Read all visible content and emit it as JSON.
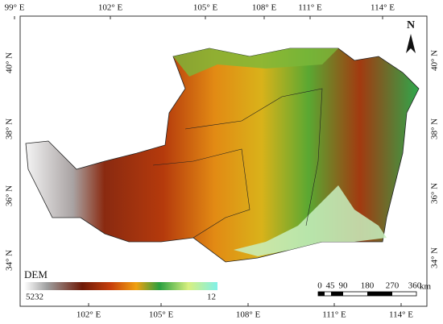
{
  "map": {
    "north_label": "N",
    "top_labels": [
      "99° E",
      "102° E",
      "105° E",
      "108° E",
      "111° E",
      "114° E"
    ],
    "bottom_labels": [
      "102° E",
      "105° E",
      "108° E",
      "111° E",
      "114° E"
    ],
    "left_labels": [
      "40° N",
      "38° N",
      "36° N",
      "34° N"
    ],
    "right_labels": [
      "40° N",
      "38° N",
      "36° N",
      "34° N"
    ],
    "legend": {
      "title": "DEM",
      "high": "5232",
      "low": "12"
    },
    "scale_bar": {
      "labels": [
        "0",
        "45",
        "90",
        "180",
        "270",
        "360"
      ],
      "unit": "km"
    }
  }
}
